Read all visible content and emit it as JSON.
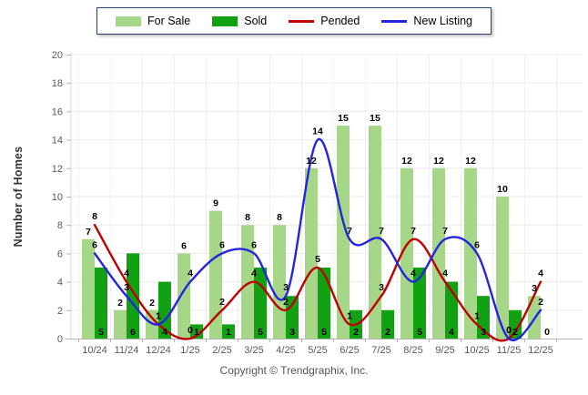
{
  "legend": {
    "border_color": "#2e4172"
  },
  "chart_data": {
    "type": "combo-bar-line",
    "categories": [
      "10/24",
      "11/24",
      "12/24",
      "1/25",
      "2/25",
      "3/25",
      "4/25",
      "5/25",
      "6/25",
      "7/25",
      "8/25",
      "9/25",
      "10/25",
      "11/25",
      "12/25"
    ],
    "series": [
      {
        "name": "For Sale",
        "kind": "bar",
        "color": "#a6d789",
        "values": [
          7,
          2,
          2,
          6,
          9,
          8,
          8,
          12,
          15,
          15,
          12,
          12,
          12,
          10,
          3
        ]
      },
      {
        "name": "Sold",
        "kind": "bar",
        "color": "#12a112",
        "values": [
          5,
          6,
          4,
          1,
          1,
          5,
          3,
          5,
          2,
          2,
          5,
          4,
          3,
          2,
          0
        ]
      },
      {
        "name": "Pended",
        "kind": "line",
        "color": "#c00000",
        "values": [
          8,
          4,
          1,
          0,
          2,
          4,
          2,
          5,
          1,
          3,
          7,
          4,
          1,
          0,
          4
        ]
      },
      {
        "name": "New Listing",
        "kind": "line",
        "color": "#2424e0",
        "values": [
          6,
          3,
          1,
          4,
          6,
          6,
          3,
          14,
          7,
          7,
          4,
          7,
          6,
          0,
          2
        ]
      }
    ],
    "ylabel": "Number of Homes",
    "xlabel": "",
    "ylim": [
      0,
      20
    ],
    "ytick_step": 2,
    "grid": true,
    "legend_position": "top-center",
    "data_labels_shown": true
  },
  "footer": {
    "copyright": "Copyright © Trendgraphix, Inc."
  },
  "colors": {
    "background": "#ffffff",
    "grid_horizontal": "#ececec",
    "grid_vertical": "#f2f2f2",
    "axis": "#b3b3b3",
    "axis_left": "#d9d9d9",
    "tick_label": "#595959",
    "data_label": "#000000"
  }
}
